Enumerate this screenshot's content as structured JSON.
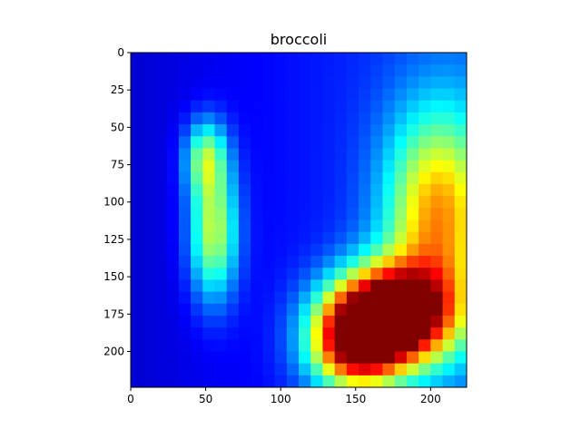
{
  "chart_data": {
    "type": "heatmap",
    "title": "broccoli",
    "xlabel": "",
    "ylabel": "",
    "xlim": [
      0,
      224
    ],
    "ylim": [
      224,
      0
    ],
    "x_ticks": [
      0,
      50,
      100,
      150,
      200
    ],
    "y_ticks": [
      0,
      25,
      50,
      75,
      100,
      125,
      150,
      175,
      200
    ],
    "colormap": "jet",
    "grid": false,
    "legend": "none",
    "hotspots": [
      {
        "x": 175,
        "y": 175,
        "intensity": 1.0,
        "spread_x": 38,
        "spread_y": 32
      },
      {
        "x": 205,
        "y": 110,
        "intensity": 0.55,
        "spread_x": 35,
        "spread_y": 70
      },
      {
        "x": 150,
        "y": 195,
        "intensity": 0.75,
        "spread_x": 30,
        "spread_y": 30
      },
      {
        "x": 55,
        "y": 120,
        "intensity": 0.45,
        "spread_x": 16,
        "spread_y": 45
      },
      {
        "x": 50,
        "y": 70,
        "intensity": 0.35,
        "spread_x": 14,
        "spread_y": 25
      }
    ]
  }
}
